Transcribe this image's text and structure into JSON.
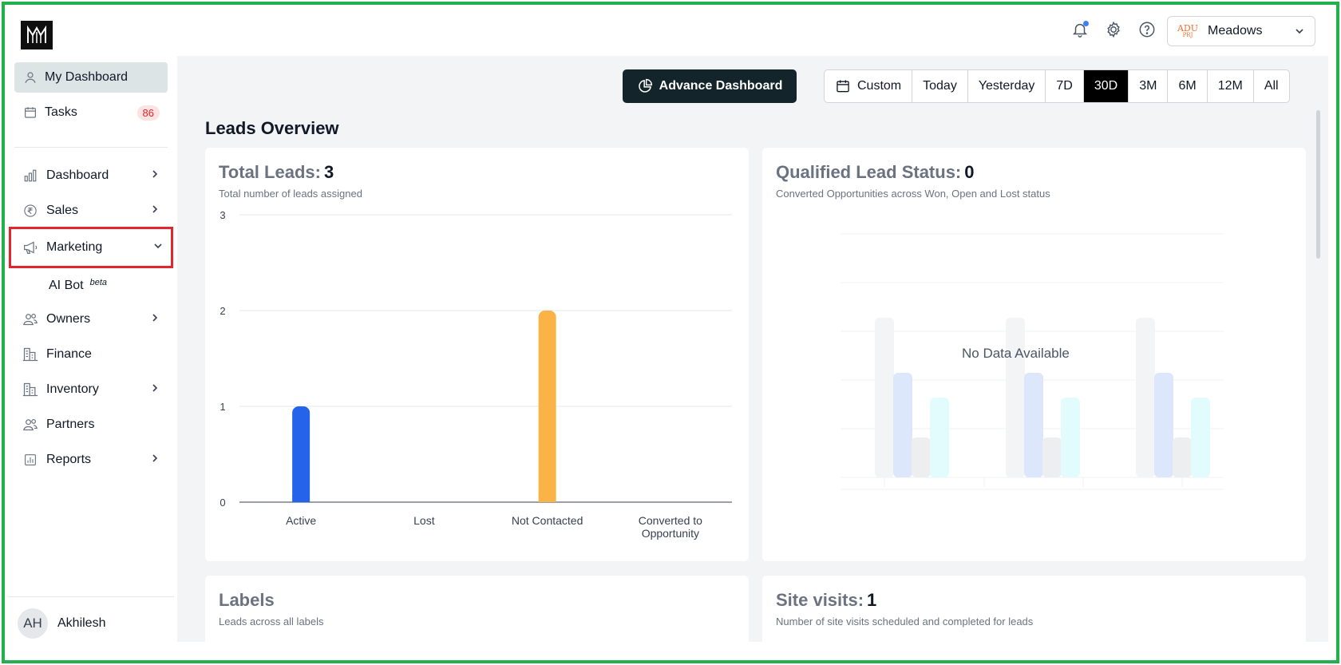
{
  "header": {
    "project_name": "Meadows",
    "project_logo_text": "ADU",
    "project_logo_sub": "PRJ",
    "icons": [
      "bell-icon",
      "settings-icon",
      "help-icon",
      "chevron-down-icon"
    ]
  },
  "sidebar": {
    "top_items": [
      {
        "label": "My Dashboard",
        "icon": "user-icon",
        "active": true
      },
      {
        "label": "Tasks",
        "icon": "calendar-icon",
        "badge": "86"
      }
    ],
    "items": [
      {
        "label": "Dashboard",
        "icon": "bar-chart-icon",
        "chevron": "right"
      },
      {
        "label": "Sales",
        "icon": "rupee-icon",
        "chevron": "right"
      },
      {
        "label": "Marketing",
        "icon": "megaphone-icon",
        "chevron": "down",
        "highlighted": true
      },
      {
        "label": "AI Bot",
        "sup": "beta",
        "sub": true
      },
      {
        "label": "Owners",
        "icon": "users-icon",
        "chevron": "right"
      },
      {
        "label": "Finance",
        "icon": "building-icon"
      },
      {
        "label": "Inventory",
        "icon": "building-icon",
        "chevron": "right"
      },
      {
        "label": "Partners",
        "icon": "users-icon"
      },
      {
        "label": "Reports",
        "icon": "report-icon",
        "chevron": "right"
      }
    ],
    "user": {
      "initials": "AH",
      "name": "Akhilesh"
    }
  },
  "toolbar": {
    "advance_label": "Advance Dashboard",
    "ranges": [
      "Custom",
      "Today",
      "Yesterday",
      "7D",
      "30D",
      "3M",
      "6M",
      "12M",
      "All"
    ],
    "active_range": "30D"
  },
  "main": {
    "section_title": "Leads Overview",
    "total_leads": {
      "title": "Total Leads:",
      "value": "3",
      "subtitle": "Total number of leads assigned"
    },
    "qualified": {
      "title": "Qualified Lead Status:",
      "value": "0",
      "subtitle": "Converted Opportunities across Won, Open and Lost status",
      "empty_text": "No Data Available"
    },
    "labels": {
      "title": "Labels",
      "subtitle": "Leads across all labels"
    },
    "site_visits": {
      "title": "Site visits:",
      "value": "1",
      "subtitle": "Number of site visits scheduled and completed for leads"
    }
  },
  "colors": {
    "accent": "#13242a",
    "active_bar": "#2563eb",
    "not_contacted_bar": "#fbb347",
    "highlight_outline": "#e3262e",
    "frame": "#22b14c"
  },
  "chart_data": [
    {
      "type": "bar",
      "title": "Total Leads: 3",
      "categories": [
        "Active",
        "Lost",
        "Not Contacted",
        "Converted to Opportunity"
      ],
      "values": [
        1,
        0,
        2,
        0
      ],
      "colors": [
        "#2563eb",
        "#2563eb",
        "#fbb347",
        "#fbb347"
      ],
      "yticks": [
        0,
        1,
        2,
        3
      ],
      "ylim": [
        0,
        3
      ],
      "grid": true
    }
  ]
}
